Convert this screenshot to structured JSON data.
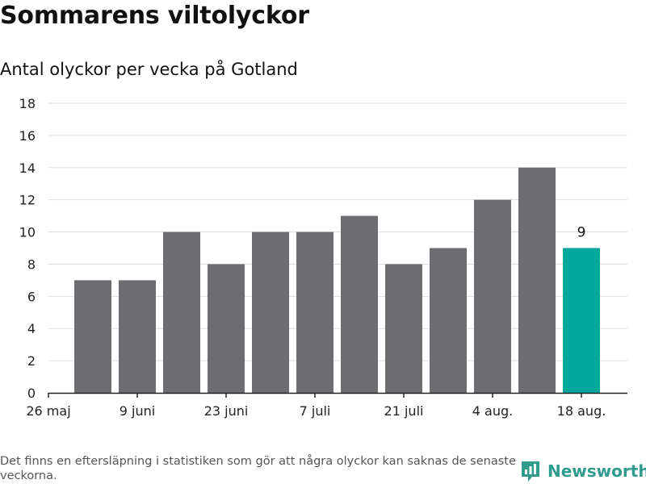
{
  "title": "Sommarens viltolyckor",
  "subtitle": "Antal olyckor per vecka på Gotland",
  "footnote": "Det finns en eftersläpning i statistiken som gör att några olyckor kan saknas de senaste veckorna.",
  "brand": {
    "name": "Newsworthy",
    "icon": "newsworthy-logo-icon"
  },
  "colors": {
    "bar": "#6d6c71",
    "highlight": "#00a79b",
    "grid": "#dddddd",
    "axis": "#222222",
    "brand": "#2f9c8e"
  },
  "chart_data": {
    "type": "bar",
    "x_tick_labels": [
      "26 maj",
      "9 juni",
      "23 juni",
      "7 juli",
      "21 juli",
      "4 aug.",
      "18 aug."
    ],
    "values": [
      7,
      7,
      10,
      8,
      10,
      10,
      11,
      8,
      9,
      12,
      14,
      9
    ],
    "highlight_index": 11,
    "data_labels": [
      {
        "index": 11,
        "text": "9"
      }
    ],
    "y_ticks": [
      0,
      2,
      4,
      6,
      8,
      10,
      12,
      14,
      16,
      18
    ],
    "ylim": [
      0,
      18
    ],
    "grid": true,
    "xlabel": "",
    "ylabel": ""
  }
}
